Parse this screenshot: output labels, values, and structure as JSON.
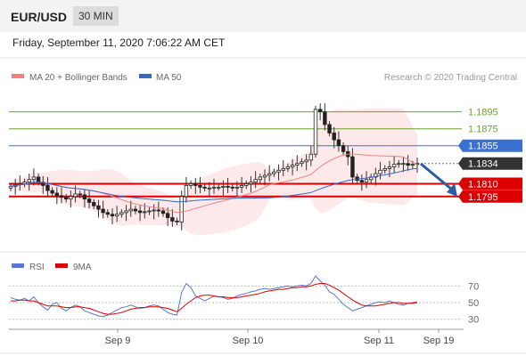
{
  "header": {
    "symbol": "EUR/USD",
    "timeframe": "30 MIN",
    "datetime": "Friday, September 11, 2020 7:06:22 AM CET"
  },
  "legend": {
    "ma20": "MA 20 + Bollinger Bands",
    "ma50": "MA 50",
    "credit": "Research © 2020 Trading Central"
  },
  "rsi_legend": {
    "rsi": "RSI",
    "ma": "9MA"
  },
  "colors": {
    "ma20": "#f08080",
    "ma50": "#3a66c4",
    "bb_fill": "#fde3e3",
    "support": "#dd0000",
    "resistance_green": "#6aa32a",
    "pivot": "#3a70d0",
    "current": "#333333",
    "arrow": "#2b5aa0"
  },
  "chart_data": {
    "type": "candlestick",
    "price_ylim": [
      1.1738,
      1.1922
    ],
    "x_labels": [
      "Sep 9",
      "Sep 10",
      "Sep 11",
      "Sep 19"
    ],
    "levels": [
      {
        "value": "1.1895",
        "y": 1.1895,
        "kind": "resistance"
      },
      {
        "value": "1.1875",
        "y": 1.1875,
        "kind": "resistance"
      },
      {
        "value": "1.1855",
        "y": 1.1855,
        "kind": "pivot"
      },
      {
        "value": "1.1834",
        "y": 1.1834,
        "kind": "current"
      },
      {
        "value": "1.1810",
        "y": 1.181,
        "kind": "support"
      },
      {
        "value": "1.1795",
        "y": 1.1795,
        "kind": "support"
      }
    ],
    "close": [
      1.1807,
      1.1809,
      1.181,
      1.1812,
      1.1815,
      1.1818,
      1.1812,
      1.1808,
      1.1802,
      1.1799,
      1.1796,
      1.1794,
      1.1792,
      1.1795,
      1.1798,
      1.1797,
      1.1792,
      1.1788,
      1.1784,
      1.178,
      1.1776,
      1.1774,
      1.1772,
      1.1774,
      1.1776,
      1.1778,
      1.178,
      1.1778,
      1.1776,
      1.1777,
      1.1778,
      1.1779,
      1.1778,
      1.1775,
      1.177,
      1.1766,
      1.1765,
      1.1795,
      1.1808,
      1.181,
      1.1808,
      1.1806,
      1.1805,
      1.1805,
      1.1806,
      1.1806,
      1.1807,
      1.1806,
      1.1805,
      1.1806,
      1.1808,
      1.181,
      1.1812,
      1.1815,
      1.1818,
      1.182,
      1.1822,
      1.1824,
      1.1826,
      1.1828,
      1.183,
      1.1832,
      1.1834,
      1.1836,
      1.1838,
      1.1845,
      1.1898,
      1.1895,
      1.188,
      1.187,
      1.1862,
      1.1855,
      1.1848,
      1.1842,
      1.1818,
      1.1814,
      1.1812,
      1.1815,
      1.1818,
      1.1822,
      1.1826,
      1.1828,
      1.183,
      1.1833,
      1.1834,
      1.1834,
      1.1832,
      1.1833,
      1.1834
    ],
    "rsi_ylim": [
      20,
      80
    ],
    "rsi_ticks": [
      "70",
      "50",
      "30"
    ],
    "rsi_values": [
      56,
      54,
      53,
      55,
      52,
      57,
      50,
      45,
      41,
      48,
      50,
      43,
      40,
      44,
      47,
      45,
      40,
      38,
      36,
      34,
      33,
      35,
      38,
      41,
      44,
      45,
      47,
      45,
      43,
      44,
      46,
      47,
      46,
      42,
      38,
      36,
      35,
      62,
      73,
      68,
      58,
      55,
      52,
      55,
      58,
      57,
      56,
      54,
      55,
      58,
      60,
      61,
      63,
      64,
      66,
      67,
      66,
      67,
      68,
      69,
      70,
      69,
      70,
      71,
      70,
      73,
      82,
      76,
      71,
      63,
      60,
      54,
      48,
      44,
      40,
      42,
      44,
      46,
      48,
      50,
      51,
      50,
      52,
      50,
      48,
      47,
      49,
      50,
      51
    ],
    "rsi_ma_values": [
      52,
      52,
      53,
      53,
      52,
      52,
      50,
      48,
      46,
      46,
      46,
      45,
      44,
      44,
      45,
      45,
      44,
      43,
      41,
      39,
      37,
      36,
      36,
      37,
      38,
      40,
      42,
      43,
      44,
      44,
      45,
      45,
      45,
      44,
      43,
      41,
      39,
      43,
      48,
      52,
      56,
      58,
      59,
      59,
      58,
      57,
      57,
      56,
      56,
      56,
      57,
      58,
      59,
      60,
      61,
      63,
      64,
      65,
      66,
      66,
      67,
      68,
      68,
      69,
      69,
      70,
      72,
      73,
      73,
      71,
      68,
      65,
      61,
      57,
      53,
      50,
      47,
      46,
      46,
      46,
      47,
      48,
      49,
      50,
      50,
      49,
      49,
      49,
      50
    ]
  }
}
